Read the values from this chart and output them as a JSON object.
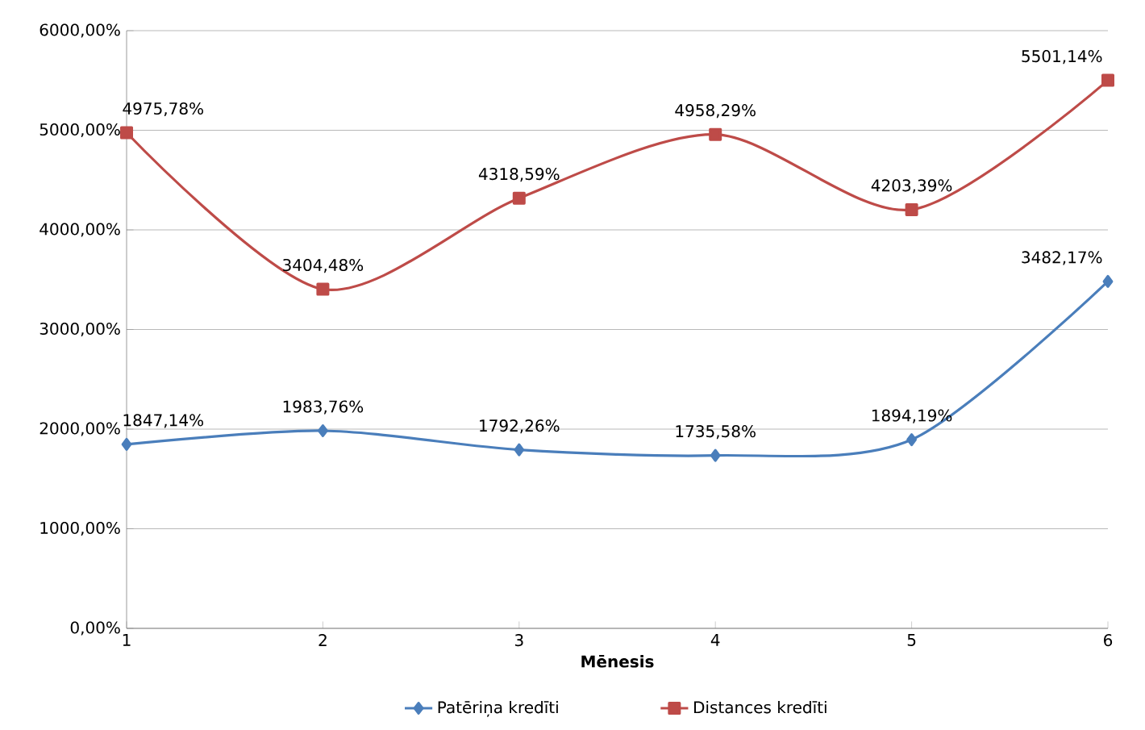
{
  "chart_data": {
    "type": "line",
    "xlabel": "**Mēnesis**",
    "categories": [
      "1",
      "2",
      "3",
      "4",
      "5",
      "6"
    ],
    "ylim": [
      0,
      6000
    ],
    "yticks": [
      {
        "value": 0,
        "label": "0,00%"
      },
      {
        "value": 1000,
        "label": "1000,00%"
      },
      {
        "value": 2000,
        "label": "2000,00%"
      },
      {
        "value": 3000,
        "label": "3000,00%"
      },
      {
        "value": 4000,
        "label": "4000,00%"
      },
      {
        "value": 5000,
        "label": "5000,00%"
      },
      {
        "value": 6000,
        "label": "6000,00%"
      }
    ],
    "grid": "y",
    "legend": "bottom",
    "series": [
      {
        "name": "Patēriņa kredīti",
        "color": "#4a7ebb",
        "marker": "diamond",
        "values": [
          1847.14,
          1983.76,
          1792.26,
          1735.58,
          1894.19,
          3482.17
        ],
        "value_labels": [
          "1847,14%",
          "1983,76%",
          "1792,26%",
          "1735,58%",
          "1894,19%",
          "3482,17%"
        ]
      },
      {
        "name": "Distances kredīti",
        "color": "#be4b48",
        "marker": "square",
        "values": [
          4975.78,
          3404.48,
          4318.59,
          4958.29,
          4203.39,
          5501.14
        ],
        "value_labels": [
          "4975,78%",
          "3404,48%",
          "4318,59%",
          "4958,29%",
          "4203,39%",
          "5501,14%"
        ]
      }
    ]
  }
}
